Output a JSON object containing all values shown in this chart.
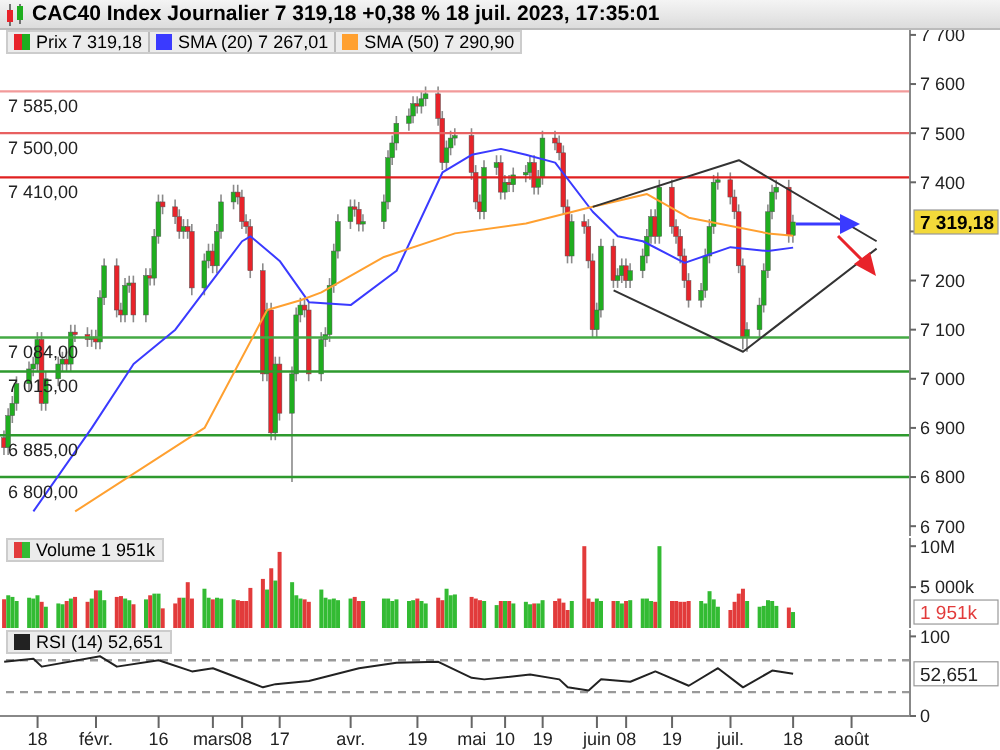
{
  "chart_data": [
    {
      "type": "candlestick",
      "title": "CAC40 Index Journalier 7 319,18 +0,38 % 18 juil. 2023, 17:35:01",
      "legend": "top left",
      "tick_labels": "y",
      "x": [
        "2023-01-10",
        "2023-01-11",
        "2023-01-12",
        "2023-01-13",
        "2023-01-16",
        "2023-01-17",
        "2023-01-18",
        "2023-01-19",
        "2023-01-20",
        "2023-01-23",
        "2023-01-24",
        "2023-01-25",
        "2023-01-26",
        "2023-01-27",
        "2023-01-30",
        "2023-01-31",
        "2023-02-01",
        "2023-02-02",
        "2023-02-03",
        "2023-02-06",
        "2023-02-07",
        "2023-02-08",
        "2023-02-09",
        "2023-02-10",
        "2023-02-13",
        "2023-02-14",
        "2023-02-15",
        "2023-02-16",
        "2023-02-17",
        "2023-02-20",
        "2023-02-21",
        "2023-02-22",
        "2023-02-23",
        "2023-02-24",
        "2023-02-27",
        "2023-02-28",
        "2023-03-01",
        "2023-03-02",
        "2023-03-03",
        "2023-03-06",
        "2023-03-07",
        "2023-03-08",
        "2023-03-09",
        "2023-03-10",
        "2023-03-13",
        "2023-03-14",
        "2023-03-15",
        "2023-03-16",
        "2023-03-17",
        "2023-03-20",
        "2023-03-21",
        "2023-03-22",
        "2023-03-23",
        "2023-03-24",
        "2023-03-27",
        "2023-03-28",
        "2023-03-29",
        "2023-03-30",
        "2023-03-31",
        "2023-04-03",
        "2023-04-04",
        "2023-04-05",
        "2023-04-06",
        "2023-04-11",
        "2023-04-12",
        "2023-04-13",
        "2023-04-14",
        "2023-04-17",
        "2023-04-18",
        "2023-04-19",
        "2023-04-20",
        "2023-04-21",
        "2023-04-24",
        "2023-04-25",
        "2023-04-26",
        "2023-04-27",
        "2023-04-28",
        "2023-05-02",
        "2023-05-03",
        "2023-05-04",
        "2023-05-05",
        "2023-05-08",
        "2023-05-09",
        "2023-05-10",
        "2023-05-11",
        "2023-05-12",
        "2023-05-15",
        "2023-05-16",
        "2023-05-17",
        "2023-05-18",
        "2023-05-19",
        "2023-05-22",
        "2023-05-23",
        "2023-05-24",
        "2023-05-25",
        "2023-05-26",
        "2023-05-29",
        "2023-05-30",
        "2023-05-31",
        "2023-06-01",
        "2023-06-02",
        "2023-06-05",
        "2023-06-06",
        "2023-06-07",
        "2023-06-08",
        "2023-06-09",
        "2023-06-12",
        "2023-06-13",
        "2023-06-14",
        "2023-06-15",
        "2023-06-16",
        "2023-06-19",
        "2023-06-20",
        "2023-06-21",
        "2023-06-22",
        "2023-06-23",
        "2023-06-26",
        "2023-06-27",
        "2023-06-28",
        "2023-06-29",
        "2023-06-30",
        "2023-07-03",
        "2023-07-04",
        "2023-07-05",
        "2023-07-06",
        "2023-07-07",
        "2023-07-10",
        "2023-07-11",
        "2023-07-12",
        "2023-07-13",
        "2023-07-14",
        "2023-07-17",
        "2023-07-18"
      ],
      "series": [
        {
          "name": "Prix 7 319,18",
          "type": "candlestick",
          "colors": [
            "#e8232a",
            "#1fae1f",
            "#1fae1f",
            "#1fae1f",
            "#1fae1f",
            "#1fae1f",
            "#1fae1f",
            "#e8232a",
            "#1fae1f",
            "#1fae1f",
            "#1fae1f",
            "#e8232a",
            "#1fae1f",
            "#e8232a",
            "#e8232a",
            "#1fae1f",
            "#e8232a",
            "#1fae1f",
            "#1fae1f",
            "#e8232a",
            "#e8232a",
            "#1fae1f",
            "#1fae1f",
            "#e8232a",
            "#1fae1f",
            "#e8232a",
            "#1fae1f",
            "#1fae1f",
            "#e8232a",
            "#e8232a",
            "#e8232a",
            "#1fae1f",
            "#e8232a",
            "#e8232a",
            "#1fae1f",
            "#1fae1f",
            "#e8232a",
            "#1fae1f",
            "#1fae1f",
            "#1fae1f",
            "#e8232a",
            "#e8232a",
            "#e8232a",
            "#e8232a",
            "#e8232a",
            "#1fae1f",
            "#e8232a",
            "#1fae1f",
            "#e8232a",
            "#1fae1f",
            "#1fae1f",
            "#1fae1f",
            "#e8232a",
            "#e8232a",
            "#1fae1f",
            "#1fae1f",
            "#1fae1f",
            "#1fae1f",
            "#1fae1f",
            "#1fae1f",
            "#e8232a",
            "#e8232a",
            "#1fae1f",
            "#1fae1f",
            "#1fae1f",
            "#1fae1f",
            "#1fae1f",
            "#1fae1f",
            "#1fae1f",
            "#e8232a",
            "#1fae1f",
            "#1fae1f",
            "#e8232a",
            "#e8232a",
            "#1fae1f",
            "#1fae1f",
            "#1fae1f",
            "#e8232a",
            "#e8232a",
            "#e8232a",
            "#1fae1f",
            "#1fae1f",
            "#e8232a",
            "#1fae1f",
            "#e8232a",
            "#1fae1f",
            "#1fae1f",
            "#1fae1f",
            "#e8232a",
            "#1fae1f",
            "#1fae1f",
            "#e8232a",
            "#e8232a",
            "#e8232a",
            "#e8232a",
            "#1fae1f",
            "#e8232a",
            "#e8232a",
            "#e8232a",
            "#1fae1f",
            "#1fae1f",
            "#e8232a",
            "#1fae1f",
            "#1fae1f",
            "#e8232a",
            "#1fae1f",
            "#1fae1f",
            "#1fae1f",
            "#1fae1f",
            "#e8232a",
            "#1fae1f",
            "#e8232a",
            "#e8232a",
            "#e8232a",
            "#e8232a",
            "#e8232a",
            "#1fae1f",
            "#1fae1f",
            "#1fae1f",
            "#1fae1f",
            "#1fae1f",
            "#e8232a",
            "#e8232a",
            "#e8232a",
            "#e8232a",
            "#1fae1f",
            "#1fae1f",
            "#1fae1f",
            "#1fae1f",
            "#1fae1f",
            "#1fae1f",
            "#e8232a",
            "#1fae1f"
          ],
          "ohlc": [
            [
              6880,
              6895,
              6845,
              6860
            ],
            [
              6860,
              6940,
              6845,
              6925
            ],
            [
              6925,
              6965,
              6910,
              6950
            ],
            [
              6950,
              7005,
              6935,
              6990
            ],
            [
              6990,
              7035,
              6975,
              7020
            ],
            [
              7020,
              7045,
              7005,
              7030
            ],
            [
              7030,
              7095,
              7015,
              7080
            ],
            [
              7080,
              7095,
              6935,
              6950
            ],
            [
              6950,
              7015,
              6935,
              7000
            ],
            [
              7000,
              7045,
              6985,
              7030
            ],
            [
              7030,
              7055,
              7015,
              7040
            ],
            [
              7040,
              7055,
              7015,
              7030
            ],
            [
              7030,
              7110,
              7015,
              7095
            ],
            [
              7095,
              7110,
              7075,
              7090
            ],
            [
              7090,
              7105,
              7065,
              7080
            ],
            [
              7080,
              7100,
              7065,
              7085
            ],
            [
              7085,
              7100,
              7060,
              7075
            ],
            [
              7075,
              7180,
              7060,
              7165
            ],
            [
              7165,
              7245,
              7150,
              7230
            ],
            [
              7230,
              7245,
              7125,
              7140
            ],
            [
              7140,
              7155,
              7115,
              7130
            ],
            [
              7130,
              7205,
              7115,
              7190
            ],
            [
              7190,
              7210,
              7175,
              7195
            ],
            [
              7195,
              7210,
              7115,
              7130
            ],
            [
              7130,
              7225,
              7115,
              7210
            ],
            [
              7210,
              7225,
              7190,
              7205
            ],
            [
              7205,
              7305,
              7190,
              7290
            ],
            [
              7290,
              7375,
              7275,
              7360
            ],
            [
              7360,
              7375,
              7335,
              7350
            ],
            [
              7350,
              7365,
              7315,
              7330
            ],
            [
              7330,
              7345,
              7285,
              7300
            ],
            [
              7300,
              7325,
              7285,
              7310
            ],
            [
              7310,
              7325,
              7285,
              7300
            ],
            [
              7300,
              7315,
              7170,
              7185
            ],
            [
              7185,
              7255,
              7170,
              7240
            ],
            [
              7240,
              7275,
              7225,
              7260
            ],
            [
              7260,
              7275,
              7215,
              7230
            ],
            [
              7230,
              7315,
              7215,
              7300
            ],
            [
              7300,
              7375,
              7285,
              7360
            ],
            [
              7360,
              7395,
              7345,
              7380
            ],
            [
              7380,
              7395,
              7355,
              7370
            ],
            [
              7370,
              7385,
              7305,
              7320
            ],
            [
              7320,
              7335,
              7295,
              7310
            ],
            [
              7310,
              7325,
              7205,
              7220
            ],
            [
              7220,
              7235,
              6995,
              7010
            ],
            [
              7010,
              7155,
              6995,
              7140
            ],
            [
              7140,
              7155,
              6875,
              6890
            ],
            [
              6890,
              7045,
              6875,
              7030
            ],
            [
              7030,
              7045,
              6915,
              6930
            ],
            [
              6930,
              7025,
              6790,
              7010
            ],
            [
              7010,
              7145,
              6995,
              7130
            ],
            [
              7130,
              7165,
              7115,
              7150
            ],
            [
              7150,
              7165,
              7125,
              7140
            ],
            [
              7140,
              7155,
              6995,
              7010
            ],
            [
              7010,
              7095,
              6995,
              7080
            ],
            [
              7080,
              7105,
              7065,
              7090
            ],
            [
              7090,
              7205,
              7075,
              7190
            ],
            [
              7190,
              7275,
              7175,
              7260
            ],
            [
              7260,
              7335,
              7245,
              7320
            ],
            [
              7320,
              7365,
              7305,
              7350
            ],
            [
              7350,
              7365,
              7330,
              7345
            ],
            [
              7345,
              7360,
              7300,
              7315
            ],
            [
              7315,
              7335,
              7300,
              7320
            ],
            [
              7320,
              7375,
              7305,
              7360
            ],
            [
              7360,
              7465,
              7345,
              7450
            ],
            [
              7450,
              7495,
              7435,
              7480
            ],
            [
              7480,
              7535,
              7465,
              7520
            ],
            [
              7520,
              7550,
              7505,
              7535
            ],
            [
              7535,
              7575,
              7520,
              7560
            ],
            [
              7560,
              7575,
              7540,
              7555
            ],
            [
              7555,
              7585,
              7540,
              7570
            ],
            [
              7570,
              7595,
              7555,
              7580
            ],
            [
              7580,
              7595,
              7515,
              7530
            ],
            [
              7530,
              7545,
              7425,
              7440
            ],
            [
              7440,
              7485,
              7425,
              7470
            ],
            [
              7470,
              7505,
              7455,
              7490
            ],
            [
              7490,
              7510,
              7475,
              7495
            ],
            [
              7495,
              7510,
              7405,
              7420
            ],
            [
              7420,
              7435,
              7345,
              7360
            ],
            [
              7360,
              7375,
              7325,
              7340
            ],
            [
              7340,
              7445,
              7325,
              7430
            ],
            [
              7430,
              7455,
              7415,
              7440
            ],
            [
              7440,
              7455,
              7365,
              7380
            ],
            [
              7380,
              7415,
              7365,
              7400
            ],
            [
              7400,
              7415,
              7380,
              7395
            ],
            [
              7395,
              7430,
              7380,
              7415
            ],
            [
              7415,
              7435,
              7400,
              7420
            ],
            [
              7420,
              7455,
              7405,
              7440
            ],
            [
              7440,
              7455,
              7375,
              7390
            ],
            [
              7390,
              7425,
              7375,
              7410
            ],
            [
              7410,
              7505,
              7395,
              7490
            ],
            [
              7490,
              7505,
              7465,
              7480
            ],
            [
              7480,
              7495,
              7445,
              7460
            ],
            [
              7460,
              7475,
              7335,
              7350
            ],
            [
              7350,
              7365,
              7235,
              7250
            ],
            [
              7250,
              7335,
              7235,
              7320
            ],
            [
              7320,
              7335,
              7295,
              7310
            ],
            [
              7310,
              7325,
              7225,
              7240
            ],
            [
              7240,
              7255,
              7085,
              7100
            ],
            [
              7100,
              7155,
              7085,
              7140
            ],
            [
              7140,
              7285,
              7125,
              7270
            ],
            [
              7270,
              7285,
              7185,
              7200
            ],
            [
              7200,
              7225,
              7185,
              7210
            ],
            [
              7210,
              7245,
              7195,
              7230
            ],
            [
              7230,
              7245,
              7185,
              7200
            ],
            [
              7200,
              7235,
              7185,
              7220
            ],
            [
              7220,
              7265,
              7205,
              7250
            ],
            [
              7250,
              7305,
              7235,
              7290
            ],
            [
              7290,
              7345,
              7275,
              7330
            ],
            [
              7330,
              7345,
              7275,
              7290
            ],
            [
              7290,
              7405,
              7275,
              7390
            ],
            [
              7390,
              7405,
              7295,
              7310
            ],
            [
              7310,
              7325,
              7275,
              7290
            ],
            [
              7290,
              7305,
              7235,
              7250
            ],
            [
              7250,
              7265,
              7185,
              7200
            ],
            [
              7200,
              7215,
              7145,
              7160
            ],
            [
              7160,
              7195,
              7145,
              7180
            ],
            [
              7180,
              7265,
              7165,
              7250
            ],
            [
              7250,
              7325,
              7235,
              7310
            ],
            [
              7310,
              7415,
              7295,
              7400
            ],
            [
              7400,
              7420,
              7385,
              7405
            ],
            [
              7405,
              7420,
              7355,
              7370
            ],
            [
              7370,
              7385,
              7325,
              7340
            ],
            [
              7340,
              7355,
              7215,
              7230
            ],
            [
              7230,
              7245,
              7060,
              7085
            ],
            [
              7085,
              7115,
              7055,
              7100
            ],
            [
              7100,
              7165,
              7085,
              7150
            ],
            [
              7150,
              7235,
              7135,
              7220
            ],
            [
              7220,
              7355,
              7205,
              7340
            ],
            [
              7340,
              7395,
              7325,
              7380
            ],
            [
              7380,
              7405,
              7365,
              7390
            ],
            [
              7390,
              7405,
              7277,
              7292
            ],
            [
              7292,
              7334,
              7277,
              7319.18
            ]
          ]
        },
        {
          "name": "SMA (20) 7 267,01",
          "type": "line",
          "color": "#3a3aff",
          "x": [
            "2023-01-17",
            "2023-01-31",
            "2023-02-10",
            "2023-02-20",
            "2023-02-28",
            "2023-03-08",
            "2023-03-10",
            "2023-03-17",
            "2023-03-24",
            "2023-04-03",
            "2023-04-14",
            "2023-04-25",
            "2023-05-02",
            "2023-05-09",
            "2023-05-15",
            "2023-05-22",
            "2023-05-31",
            "2023-06-06",
            "2023-06-12",
            "2023-06-22",
            "2023-07-03",
            "2023-07-12",
            "2023-07-18"
          ],
          "values": [
            6730,
            6900,
            7030,
            7100,
            7190,
            7280,
            7290,
            7240,
            7156,
            7150,
            7220,
            7420,
            7456,
            7468,
            7456,
            7440,
            7340,
            7290,
            7280,
            7236,
            7268,
            7260,
            7267
          ]
        },
        {
          "name": "SMA (50) 7 290,90",
          "type": "line",
          "color": "#ffa030",
          "x": [
            "2023-01-27",
            "2023-02-27",
            "2023-03-14",
            "2023-03-22",
            "2023-03-27",
            "2023-04-11",
            "2023-04-28",
            "2023-05-15",
            "2023-05-30",
            "2023-06-13",
            "2023-06-23",
            "2023-07-12",
            "2023-07-18"
          ],
          "values": [
            6730,
            6900,
            7140,
            7160,
            7176,
            7248,
            7296,
            7316,
            7348,
            7376,
            7328,
            7296,
            7291
          ]
        },
        {
          "type": "line",
          "color": "#333333",
          "x": [
            "2023-05-31",
            "2023-07-05",
            "2023-08-07"
          ],
          "values": [
            7350,
            7445,
            7280
          ]
        },
        {
          "type": "line",
          "color": "#333333",
          "x": [
            "2023-06-05",
            "2023-07-06",
            "2023-08-07"
          ],
          "values": [
            7180,
            7055,
            7265
          ]
        }
      ],
      "xlim": [
        "2023-01-09",
        "2023-08-15"
      ],
      "ylim": [
        6680,
        7710
      ],
      "yticks": [
        {
          "value": 6700,
          "label": "6 700"
        },
        {
          "value": 6800,
          "label": "6 800"
        },
        {
          "value": 6900,
          "label": "6 900"
        },
        {
          "value": 7000,
          "label": "7 000"
        },
        {
          "value": 7100,
          "label": "7 100"
        },
        {
          "value": 7200,
          "label": "7 200"
        },
        {
          "value": 7300,
          "label": null
        },
        {
          "value": 7400,
          "label": "7 400"
        },
        {
          "value": 7500,
          "label": "7 500"
        },
        {
          "value": 7600,
          "label": "7 600"
        },
        {
          "value": 7700,
          "label": "7 700"
        }
      ],
      "ref_lines": [
        {
          "axis": "y",
          "value": 7585,
          "label": "7 585,00",
          "color": "#f29a9a"
        },
        {
          "axis": "y",
          "value": 7500,
          "label": "7 500,00",
          "color": "#e86060"
        },
        {
          "axis": "y",
          "value": 7410,
          "label": "7 410,00",
          "color": "#e02020"
        },
        {
          "axis": "y",
          "value": 7084,
          "label": "7 084,00",
          "color": "#44aa44"
        },
        {
          "axis": "y",
          "value": 7015,
          "label": "7 015,00",
          "color": "#2e9a2e"
        },
        {
          "axis": "y",
          "value": 6885,
          "label": "6 885,00",
          "color": "#2e9a2e"
        },
        {
          "axis": "y",
          "value": 6800,
          "label": "6 800,00",
          "color": "#2e9a2e"
        }
      ],
      "annotations": [
        "7 319,18"
      ]
    },
    {
      "type": "bar",
      "legend": "top left",
      "tick_labels": "y",
      "series": [
        {
          "name": "Volume 1 951k",
          "colors": [
            "#e23b3b",
            "#33bb33",
            "#33bb33",
            "#33bb33",
            "#33bb33",
            "#33bb33",
            "#33bb33",
            "#e23b3b",
            "#33bb33",
            "#33bb33",
            "#33bb33",
            "#e23b3b",
            "#33bb33",
            "#e23b3b",
            "#e23b3b",
            "#33bb33",
            "#e23b3b",
            "#33bb33",
            "#33bb33",
            "#e23b3b",
            "#e23b3b",
            "#33bb33",
            "#33bb33",
            "#e23b3b",
            "#33bb33",
            "#e23b3b",
            "#33bb33",
            "#33bb33",
            "#e23b3b",
            "#e23b3b",
            "#e23b3b",
            "#33bb33",
            "#e23b3b",
            "#e23b3b",
            "#33bb33",
            "#33bb33",
            "#e23b3b",
            "#33bb33",
            "#33bb33",
            "#33bb33",
            "#e23b3b",
            "#e23b3b",
            "#e23b3b",
            "#e23b3b",
            "#e23b3b",
            "#33bb33",
            "#e23b3b",
            "#33bb33",
            "#e23b3b",
            "#33bb33",
            "#33bb33",
            "#33bb33",
            "#e23b3b",
            "#e23b3b",
            "#33bb33",
            "#33bb33",
            "#33bb33",
            "#33bb33",
            "#33bb33",
            "#33bb33",
            "#e23b3b",
            "#e23b3b",
            "#33bb33",
            "#33bb33",
            "#33bb33",
            "#33bb33",
            "#33bb33",
            "#33bb33",
            "#33bb33",
            "#e23b3b",
            "#33bb33",
            "#33bb33",
            "#e23b3b",
            "#e23b3b",
            "#33bb33",
            "#33bb33",
            "#33bb33",
            "#e23b3b",
            "#e23b3b",
            "#e23b3b",
            "#33bb33",
            "#33bb33",
            "#e23b3b",
            "#33bb33",
            "#e23b3b",
            "#33bb33",
            "#33bb33",
            "#33bb33",
            "#e23b3b",
            "#33bb33",
            "#33bb33",
            "#e23b3b",
            "#e23b3b",
            "#e23b3b",
            "#e23b3b",
            "#33bb33",
            "#e23b3b",
            "#e23b3b",
            "#e23b3b",
            "#33bb33",
            "#33bb33",
            "#e23b3b",
            "#33bb33",
            "#33bb33",
            "#e23b3b",
            "#33bb33",
            "#33bb33",
            "#33bb33",
            "#33bb33",
            "#e23b3b",
            "#33bb33",
            "#e23b3b",
            "#e23b3b",
            "#e23b3b",
            "#e23b3b",
            "#e23b3b",
            "#33bb33",
            "#33bb33",
            "#33bb33",
            "#33bb33",
            "#33bb33",
            "#e23b3b",
            "#e23b3b",
            "#e23b3b",
            "#e23b3b",
            "#33bb33",
            "#33bb33",
            "#33bb33",
            "#33bb33",
            "#33bb33",
            "#33bb33",
            "#e23b3b",
            "#33bb33"
          ],
          "values": [
            3500000,
            4000000,
            3800000,
            3300000,
            3700000,
            3600000,
            4000000,
            3200000,
            2600000,
            3000000,
            2900000,
            3300000,
            3600000,
            3800000,
            3200000,
            3600000,
            4600000,
            4600000,
            3400000,
            3800000,
            3900000,
            3600000,
            3400000,
            2900000,
            3500000,
            4000000,
            4200000,
            4200000,
            2400000,
            3000000,
            3700000,
            3700000,
            5600000,
            3600000,
            4800000,
            3700000,
            3500000,
            3700000,
            3600000,
            3500000,
            3400000,
            3300000,
            3300000,
            4900000,
            6000000,
            4700000,
            7300000,
            5800000,
            9300000,
            5600000,
            4000000,
            3600000,
            3500000,
            3200000,
            4700000,
            3700000,
            3500000,
            3600000,
            3400000,
            3600000,
            3800000,
            3300000,
            3300000,
            3600000,
            3600000,
            3300000,
            3500000,
            3300000,
            3400000,
            3600000,
            3300000,
            3000000,
            3700000,
            3400000,
            4800000,
            4000000,
            4100000,
            3800000,
            3600000,
            3400000,
            3300000,
            2800000,
            3300000,
            3300000,
            3300000,
            3000000,
            3200000,
            2900000,
            3000000,
            3000000,
            3400000,
            3300000,
            3600000,
            3100000,
            2200000,
            3300000,
            10000000,
            3600000,
            3200000,
            3600000,
            3300000,
            3300000,
            3300000,
            3000000,
            3300000,
            3400000,
            3600000,
            3600000,
            3300000,
            3200000,
            10000000,
            3300000,
            3300000,
            3200000,
            3200000,
            3300000,
            3300000,
            3000000,
            4500000,
            3500000,
            2600000,
            2200000,
            3200000,
            4200000,
            4800000,
            3300000,
            2600000,
            2700000,
            3400000,
            3300000,
            2700000,
            2500000,
            1951000
          ]
        }
      ],
      "x": [
        "2023-01-10",
        "2023-01-11",
        "2023-01-12",
        "2023-01-13",
        "2023-01-16",
        "2023-01-17",
        "2023-01-18",
        "2023-01-19",
        "2023-01-20",
        "2023-01-23",
        "2023-01-24",
        "2023-01-25",
        "2023-01-26",
        "2023-01-27",
        "2023-01-30",
        "2023-01-31",
        "2023-02-01",
        "2023-02-02",
        "2023-02-03",
        "2023-02-06",
        "2023-02-07",
        "2023-02-08",
        "2023-02-09",
        "2023-02-10",
        "2023-02-13",
        "2023-02-14",
        "2023-02-15",
        "2023-02-16",
        "2023-02-17",
        "2023-02-20",
        "2023-02-21",
        "2023-02-22",
        "2023-02-23",
        "2023-02-24",
        "2023-02-27",
        "2023-02-28",
        "2023-03-01",
        "2023-03-02",
        "2023-03-03",
        "2023-03-06",
        "2023-03-07",
        "2023-03-08",
        "2023-03-09",
        "2023-03-10",
        "2023-03-13",
        "2023-03-14",
        "2023-03-15",
        "2023-03-16",
        "2023-03-17",
        "2023-03-20",
        "2023-03-21",
        "2023-03-22",
        "2023-03-23",
        "2023-03-24",
        "2023-03-27",
        "2023-03-28",
        "2023-03-29",
        "2023-03-30",
        "2023-03-31",
        "2023-04-03",
        "2023-04-04",
        "2023-04-05",
        "2023-04-06",
        "2023-04-11",
        "2023-04-12",
        "2023-04-13",
        "2023-04-14",
        "2023-04-17",
        "2023-04-18",
        "2023-04-19",
        "2023-04-20",
        "2023-04-21",
        "2023-04-24",
        "2023-04-25",
        "2023-04-26",
        "2023-04-27",
        "2023-04-28",
        "2023-05-02",
        "2023-05-03",
        "2023-05-04",
        "2023-05-05",
        "2023-05-08",
        "2023-05-09",
        "2023-05-10",
        "2023-05-11",
        "2023-05-12",
        "2023-05-15",
        "2023-05-16",
        "2023-05-17",
        "2023-05-18",
        "2023-05-19",
        "2023-05-22",
        "2023-05-23",
        "2023-05-24",
        "2023-05-25",
        "2023-05-26",
        "2023-05-29",
        "2023-05-30",
        "2023-05-31",
        "2023-06-01",
        "2023-06-02",
        "2023-06-05",
        "2023-06-06",
        "2023-06-07",
        "2023-06-08",
        "2023-06-09",
        "2023-06-12",
        "2023-06-13",
        "2023-06-14",
        "2023-06-15",
        "2023-06-16",
        "2023-06-19",
        "2023-06-20",
        "2023-06-21",
        "2023-06-22",
        "2023-06-23",
        "2023-06-26",
        "2023-06-27",
        "2023-06-28",
        "2023-06-29",
        "2023-06-30",
        "2023-07-03",
        "2023-07-04",
        "2023-07-05",
        "2023-07-06",
        "2023-07-07",
        "2023-07-10",
        "2023-07-11",
        "2023-07-12",
        "2023-07-13",
        "2023-07-14",
        "2023-07-17",
        "2023-07-18"
      ],
      "xlim": [
        "2023-01-09",
        "2023-08-15"
      ],
      "ylim": [
        0,
        11000000
      ],
      "yticks": [
        {
          "value": 5000000,
          "label": "5 000k"
        },
        {
          "value": 10000000,
          "label": "10M"
        }
      ],
      "annotations": [
        "1 951k"
      ]
    },
    {
      "type": "line",
      "legend": "top left",
      "series": [
        {
          "name": "RSI (14) 52,651",
          "color": "#222222",
          "x": [
            "2023-01-10",
            "2023-01-17",
            "2023-01-19",
            "2023-02-02",
            "2023-02-06",
            "2023-02-16",
            "2023-02-24",
            "2023-03-01",
            "2023-03-13",
            "2023-03-16",
            "2023-03-24",
            "2023-04-05",
            "2023-04-14",
            "2023-04-24",
            "2023-05-02",
            "2023-05-05",
            "2023-05-16",
            "2023-05-23",
            "2023-05-25",
            "2023-05-30",
            "2023-06-02",
            "2023-06-09",
            "2023-06-15",
            "2023-06-23",
            "2023-06-30",
            "2023-07-06",
            "2023-07-13",
            "2023-07-18"
          ],
          "values": [
            68,
            72,
            62,
            75,
            62,
            70,
            56,
            60,
            36,
            40,
            44,
            60,
            67,
            68,
            48,
            46,
            52,
            46,
            36,
            32,
            46,
            43,
            56,
            38,
            60,
            36,
            57,
            53
          ]
        }
      ],
      "xlim": [
        "2023-01-09",
        "2023-08-15"
      ],
      "xticks": [
        {
          "value": "2023-01-18",
          "label": "18"
        },
        {
          "value": "2023-02-01",
          "label": "févr."
        },
        {
          "value": "2023-02-16",
          "label": "16"
        },
        {
          "value": "2023-03-01",
          "label": "mars"
        },
        {
          "value": "2023-03-08",
          "label": "08"
        },
        {
          "value": "2023-03-17",
          "label": "17"
        },
        {
          "value": "2023-04-03",
          "label": "avr."
        },
        {
          "value": "2023-04-19",
          "label": "19"
        },
        {
          "value": "2023-05-02",
          "label": "mai"
        },
        {
          "value": "2023-05-10",
          "label": "10"
        },
        {
          "value": "2023-05-19",
          "label": "19"
        },
        {
          "value": "2023-06-01",
          "label": "juin"
        },
        {
          "value": "2023-06-08",
          "label": "08"
        },
        {
          "value": "2023-06-19",
          "label": "19"
        },
        {
          "value": "2023-07-03",
          "label": "juil."
        },
        {
          "value": "2023-07-18",
          "label": "18"
        },
        {
          "value": "2023-08-01",
          "label": "août"
        }
      ],
      "ylim": [
        0,
        108
      ],
      "yticks": [
        0,
        100
      ],
      "ref_lines": [
        {
          "axis": "y",
          "value": 70,
          "color": "#999999",
          "line_style": "dashed"
        },
        {
          "axis": "y",
          "value": 30,
          "color": "#999999",
          "line_style": "dashed"
        }
      ],
      "annotations": [
        "52,651"
      ]
    }
  ]
}
